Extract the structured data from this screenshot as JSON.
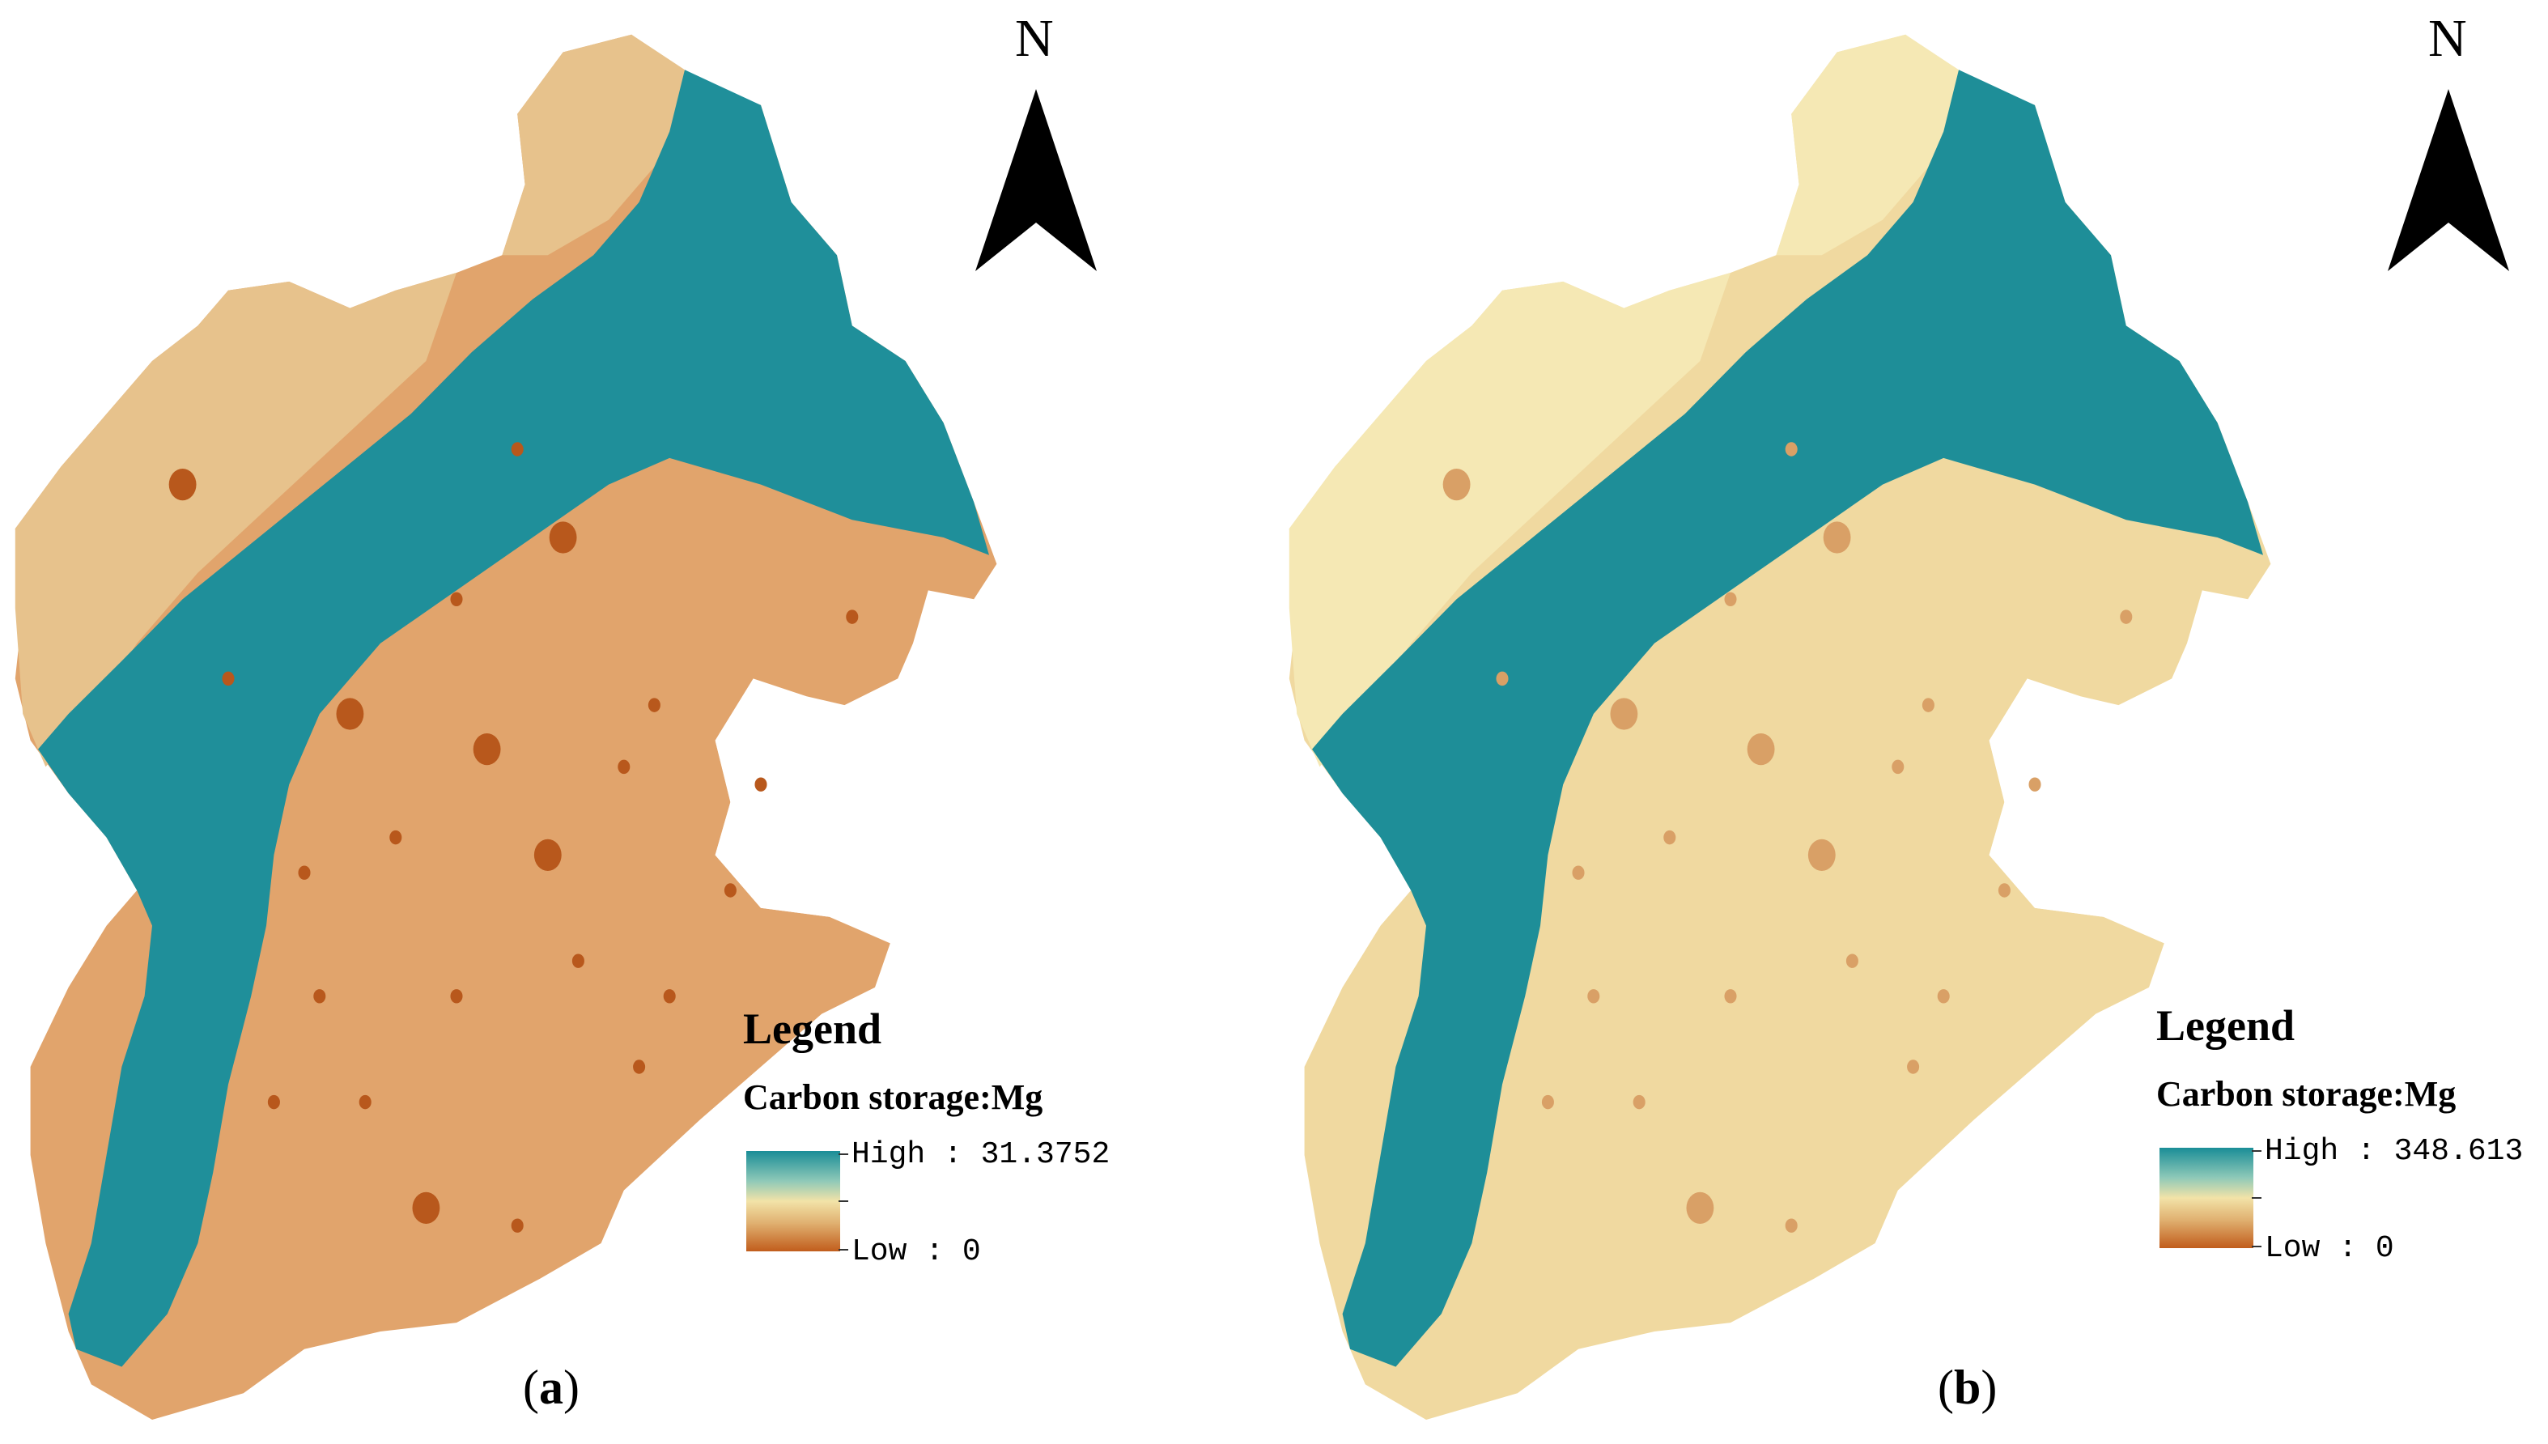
{
  "colors": {
    "high": "#1a8d97",
    "mid": "#f2e3a8",
    "low": "#c15d1c"
  },
  "panels": [
    {
      "id": "a",
      "caption_letter": "a",
      "north_label": "N",
      "legend": {
        "title": "Legend",
        "subtitle": "Carbon storage:Mg",
        "high_label": "High : 31.3752",
        "low_label": "Low : 0"
      },
      "palette": {
        "plain": "#e1a46c",
        "north": "#e7c28c",
        "forest": "#1f8f9a",
        "urban": "#b8581c"
      }
    },
    {
      "id": "b",
      "caption_letter": "b",
      "north_label": "N",
      "legend": {
        "title": "Legend",
        "subtitle": "Carbon storage:Mg",
        "high_label": "High : 348.613",
        "low_label": "Low : 0"
      },
      "palette": {
        "plain": "#f0d9a0",
        "north": "#f5e8b4",
        "forest": "#1e8e98",
        "urban": "#d9a066"
      }
    }
  ]
}
